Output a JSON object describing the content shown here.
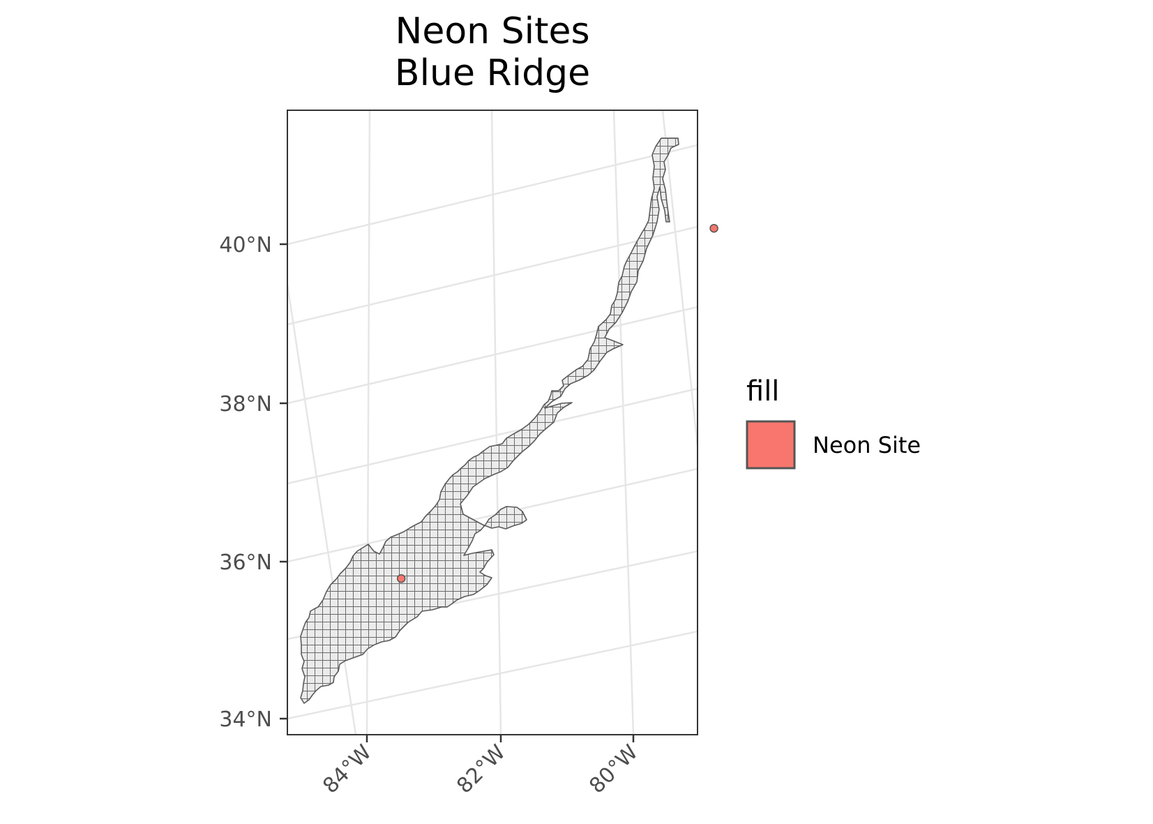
{
  "title_lines": [
    "Neon Sites",
    "Blue Ridge"
  ],
  "chart_data": {
    "type": "map",
    "projection": "conic (tilted graticule)",
    "title": "Neon Sites\nBlue Ridge",
    "region": {
      "name": "Blue Ridge",
      "fill_color": "#ebebeb",
      "hatch": "crosshatch",
      "border_color": "#5a5a5a"
    },
    "sites": [
      {
        "lat": 39.06,
        "lon": -78.07
      },
      {
        "lat": 35.69,
        "lon": -83.5
      }
    ],
    "x_axis": {
      "ticks": [
        "84°W",
        "82°W",
        "80°W"
      ]
    },
    "y_axis": {
      "ticks": [
        "34°N",
        "36°N",
        "38°N",
        "40°N"
      ]
    },
    "grid": true,
    "legend": {
      "placement": "right",
      "title": "fill",
      "items": [
        {
          "label": "Neon Site",
          "color": "#F8766D"
        }
      ]
    }
  }
}
